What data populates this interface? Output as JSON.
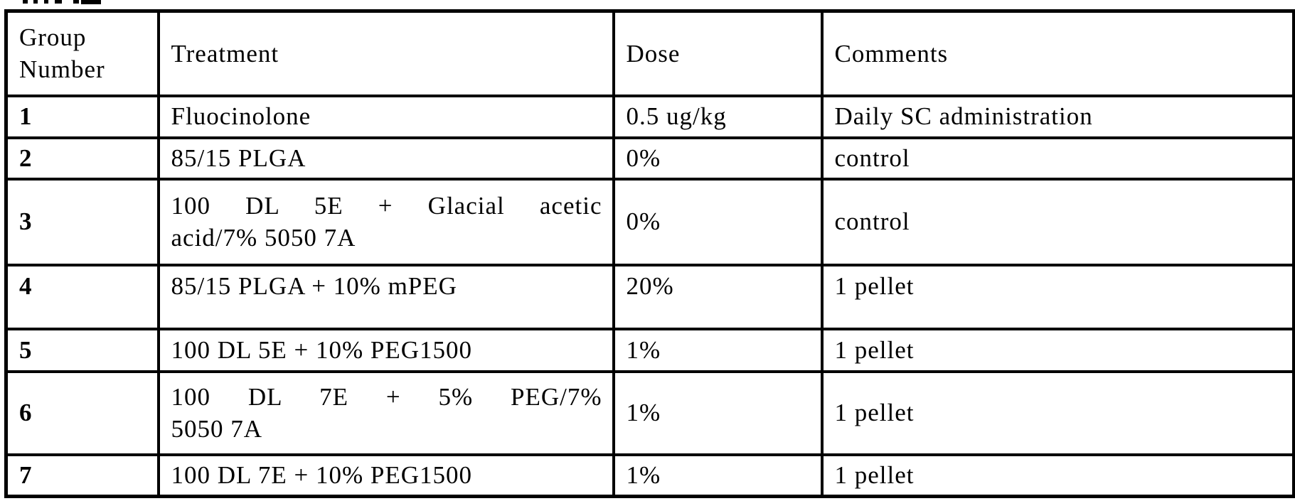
{
  "page": {
    "background_color": "#ffffff",
    "text_color": "#000000"
  },
  "table": {
    "columns": [
      {
        "key": "group",
        "label": "Group Number"
      },
      {
        "key": "treatment",
        "label": "Treatment"
      },
      {
        "key": "dose",
        "label": "Dose"
      },
      {
        "key": "comments",
        "label": "Comments"
      }
    ],
    "rows": [
      {
        "group": "1",
        "treatment": [
          "Fluocinolone"
        ],
        "dose": "0.5 ug/kg",
        "comments": "Daily SC administration"
      },
      {
        "group": "2",
        "treatment": [
          "85/15 PLGA"
        ],
        "dose": "0%",
        "comments": "control"
      },
      {
        "group": "3",
        "treatment": [
          "100 DL 5E + Glacial acetic",
          "acid/7% 5050 7A"
        ],
        "dose": "0%",
        "comments": "control"
      },
      {
        "group": "4",
        "treatment": [
          "85/15 PLGA + 10% mPEG"
        ],
        "dose": "20%",
        "comments": "1 pellet"
      },
      {
        "group": "5",
        "treatment": [
          "100 DL 5E + 10% PEG1500"
        ],
        "dose": "1%",
        "comments": "1 pellet"
      },
      {
        "group": "6",
        "treatment": [
          "100 DL 7E + 5% PEG/7%",
          "5050 7A"
        ],
        "dose": "1%",
        "comments": "1 pellet"
      },
      {
        "group": "7",
        "treatment": [
          "100 DL 7E + 10% PEG1500"
        ],
        "dose": "1%",
        "comments": "1 pellet"
      }
    ]
  }
}
